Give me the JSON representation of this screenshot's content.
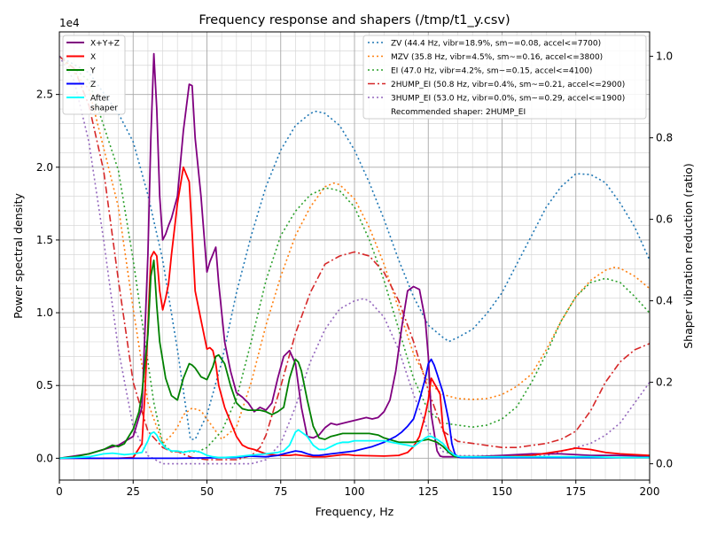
{
  "chart_data": {
    "type": "line",
    "title": "Frequency response and shapers (/tmp/t1_y.csv)",
    "xlabel": "Frequency, Hz",
    "ylabel_left": "Power spectral density",
    "ylabel_right": "Shaper vibration reduction (ratio)",
    "left_exponent_label": "1e4",
    "xlim": [
      0,
      200
    ],
    "ylim_left": [
      -1500,
      29300
    ],
    "ylim_right": [
      -0.04,
      1.06
    ],
    "grid": true,
    "x_ticks": [
      0,
      25,
      50,
      75,
      100,
      125,
      150,
      175,
      200
    ],
    "x_tick_labels": [
      "0",
      "25",
      "50",
      "75",
      "100",
      "125",
      "150",
      "175",
      "200"
    ],
    "y_left_ticks": [
      0,
      5000,
      10000,
      15000,
      20000,
      25000
    ],
    "y_left_tick_labels": [
      "0.0",
      "0.5",
      "1.0",
      "1.5",
      "2.0",
      "2.5"
    ],
    "y_right_ticks": [
      0,
      0.2,
      0.4,
      0.6,
      0.8,
      1.0
    ],
    "y_right_tick_labels": [
      "0.0",
      "0.2",
      "0.4",
      "0.6",
      "0.8",
      "1.0"
    ],
    "legend_left": {
      "placement": "top-left",
      "entries": [
        "X+Y+Z",
        "X",
        "Y",
        "Z",
        "After\nshaper"
      ]
    },
    "legend_right": {
      "placement": "top-right",
      "entries": [
        "ZV (44.4 Hz, vibr=18.9%, sm~=0.08, accel<=7700)",
        "MZV (35.8 Hz, vibr=4.5%, sm~=0.16, accel<=3800)",
        "EI (47.0 Hz, vibr=4.2%, sm~=0.15, accel<=4100)",
        "2HUMP_EI (50.8 Hz, vibr=0.4%, sm~=0.21, accel<=2900)",
        "3HUMP_EI (53.0 Hz, vibr=0.0%, sm~=0.29, accel<=1900)"
      ],
      "note": "Recommended shaper: 2HUMP_EI"
    },
    "psd_series": [
      {
        "name": "X+Y+Z",
        "color": "#800080",
        "style": "solid",
        "x": [
          0,
          10,
          20,
          25,
          28,
          30,
          31,
          32,
          33,
          34,
          35,
          36,
          37,
          38,
          40,
          42,
          44,
          45,
          46,
          48,
          50,
          51,
          53,
          54,
          56,
          58,
          60,
          62,
          64,
          66,
          68,
          70,
          72,
          74,
          76,
          78,
          80,
          81,
          82,
          84,
          86,
          88,
          90,
          92,
          94,
          96,
          98,
          100,
          102,
          104,
          106,
          108,
          110,
          112,
          114,
          116,
          118,
          120,
          122,
          124,
          125,
          126,
          128,
          129,
          130,
          131,
          132,
          133,
          135,
          140,
          150,
          160,
          170,
          180,
          190,
          200
        ],
        "y": [
          0,
          300,
          900,
          1500,
          3500,
          14000,
          22000,
          27800,
          24000,
          18000,
          15000,
          15400,
          16000,
          16500,
          18000,
          22500,
          25700,
          25600,
          22000,
          18000,
          12800,
          13500,
          14500,
          12000,
          8000,
          6000,
          4500,
          4200,
          3800,
          3200,
          3500,
          3300,
          3800,
          5500,
          7000,
          7400,
          6500,
          5000,
          3500,
          1500,
          1400,
          1600,
          2100,
          2400,
          2300,
          2400,
          2500,
          2600,
          2700,
          2800,
          2700,
          2800,
          3200,
          4000,
          6000,
          9000,
          11500,
          11800,
          11600,
          9500,
          7000,
          3000,
          500,
          150,
          100,
          100,
          100,
          100,
          100,
          100,
          200,
          300,
          300,
          200,
          200,
          150
        ]
      },
      {
        "name": "X",
        "color": "#ff0000",
        "style": "solid",
        "x": [
          0,
          20,
          25,
          28,
          29,
          30,
          31,
          32,
          33,
          34,
          35,
          36,
          37,
          38,
          40,
          42,
          44,
          45,
          46,
          48,
          50,
          51,
          52,
          53,
          54,
          56,
          58,
          60,
          62,
          64,
          66,
          68,
          70,
          72,
          74,
          76,
          78,
          80,
          82,
          84,
          86,
          88,
          90,
          92,
          94,
          96,
          98,
          100,
          110,
          115,
          118,
          120,
          122,
          124,
          125,
          126,
          128,
          129,
          130,
          132,
          134,
          136,
          140,
          150,
          160,
          170,
          175,
          180,
          185,
          190,
          200
        ],
        "y": [
          0,
          0,
          50,
          1000,
          4500,
          9000,
          13800,
          14200,
          13900,
          11500,
          10200,
          11000,
          12000,
          14000,
          17500,
          20000,
          19000,
          15500,
          11500,
          9500,
          7500,
          7600,
          7400,
          6500,
          5000,
          3500,
          2500,
          1500,
          900,
          700,
          600,
          450,
          300,
          250,
          200,
          200,
          200,
          250,
          200,
          150,
          100,
          100,
          100,
          150,
          200,
          250,
          250,
          200,
          150,
          200,
          400,
          800,
          1500,
          3000,
          4000,
          5500,
          4800,
          4400,
          2000,
          600,
          150,
          100,
          100,
          100,
          200,
          500,
          700,
          600,
          400,
          300,
          200
        ]
      },
      {
        "name": "Y",
        "color": "#008000",
        "style": "solid",
        "x": [
          0,
          5,
          10,
          15,
          18,
          20,
          22,
          25,
          27,
          28,
          30,
          31,
          32,
          33,
          34,
          36,
          38,
          40,
          42,
          44,
          45,
          46,
          48,
          50,
          52,
          53,
          54,
          56,
          58,
          60,
          62,
          64,
          66,
          68,
          70,
          72,
          74,
          76,
          78,
          80,
          81,
          82,
          84,
          86,
          88,
          90,
          92,
          94,
          96,
          98,
          100,
          105,
          108,
          110,
          115,
          120,
          125,
          128,
          130,
          132,
          134,
          140,
          150,
          160,
          170,
          180,
          190,
          200
        ],
        "y": [
          0,
          100,
          300,
          600,
          900,
          800,
          1000,
          2000,
          3200,
          4500,
          8500,
          12500,
          13600,
          10500,
          8000,
          5500,
          4300,
          4000,
          5500,
          6500,
          6400,
          6200,
          5600,
          5400,
          6300,
          7000,
          7100,
          6500,
          5000,
          3800,
          3400,
          3300,
          3300,
          3300,
          3200,
          3000,
          3200,
          3500,
          5500,
          6800,
          6600,
          6000,
          4000,
          2200,
          1400,
          1300,
          1500,
          1600,
          1700,
          1700,
          1700,
          1700,
          1600,
          1400,
          1100,
          1100,
          1300,
          1100,
          800,
          400,
          100,
          50,
          50,
          50,
          50,
          50,
          50,
          50
        ]
      },
      {
        "name": "Z",
        "color": "#0000ff",
        "style": "solid",
        "x": [
          0,
          20,
          40,
          60,
          62,
          64,
          70,
          74,
          76,
          78,
          80,
          82,
          84,
          86,
          88,
          90,
          92,
          94,
          96,
          98,
          100,
          102,
          104,
          106,
          108,
          110,
          112,
          114,
          116,
          118,
          120,
          122,
          124,
          125,
          126,
          127,
          128,
          130,
          132,
          133,
          134,
          135,
          136,
          140,
          150,
          160,
          170,
          180,
          190,
          200
        ],
        "y": [
          0,
          0,
          0,
          50,
          100,
          150,
          100,
          200,
          300,
          400,
          500,
          450,
          300,
          200,
          200,
          250,
          300,
          350,
          400,
          450,
          500,
          600,
          700,
          800,
          950,
          1100,
          1300,
          1500,
          1800,
          2200,
          2700,
          4000,
          5500,
          6500,
          6800,
          6400,
          5800,
          4500,
          2500,
          1000,
          300,
          100,
          50,
          50,
          50,
          50,
          50,
          50,
          50,
          50
        ]
      },
      {
        "name": "After\nshaper",
        "color": "#00ffff",
        "style": "solid",
        "x": [
          0,
          10,
          15,
          18,
          20,
          22,
          25,
          28,
          30,
          31,
          32,
          33,
          34,
          36,
          38,
          40,
          42,
          44,
          46,
          48,
          50,
          52,
          54,
          56,
          58,
          60,
          64,
          70,
          74,
          76,
          78,
          80,
          81,
          82,
          84,
          86,
          88,
          90,
          92,
          94,
          96,
          98,
          100,
          104,
          108,
          110,
          115,
          118,
          120,
          122,
          124,
          125,
          126,
          128,
          130,
          132,
          134,
          136,
          140,
          150,
          160,
          170,
          180,
          190,
          200
        ],
        "y": [
          0,
          100,
          300,
          350,
          300,
          250,
          300,
          400,
          1200,
          1700,
          1800,
          1600,
          1200,
          700,
          500,
          500,
          400,
          500,
          500,
          400,
          200,
          100,
          50,
          50,
          80,
          100,
          200,
          300,
          400,
          500,
          900,
          1800,
          1950,
          1800,
          1500,
          900,
          600,
          600,
          800,
          1000,
          1100,
          1100,
          1200,
          1200,
          1200,
          1200,
          1000,
          900,
          800,
          1100,
          1400,
          1500,
          1500,
          1300,
          1000,
          500,
          200,
          100,
          100,
          100,
          100,
          100,
          100,
          50,
          50
        ]
      }
    ],
    "shaper_series": [
      {
        "name": "ZV (44.4 Hz, vibr=18.9%, sm~=0.08, accel<=7700)",
        "color": "#1f77b4",
        "style": "dotted",
        "x": [
          0,
          10,
          20,
          25,
          30,
          35,
          40,
          44.4,
          46,
          48,
          50,
          55,
          60,
          65,
          70,
          75,
          80,
          85,
          87,
          90,
          95,
          100,
          105,
          110,
          115,
          120,
          125,
          130,
          132,
          135,
          140,
          145,
          150,
          155,
          160,
          165,
          170,
          175,
          180,
          185,
          190,
          195,
          200
        ],
        "y": [
          1.0,
          0.96,
          0.86,
          0.79,
          0.66,
          0.5,
          0.28,
          0.06,
          0.06,
          0.09,
          0.12,
          0.25,
          0.42,
          0.56,
          0.68,
          0.77,
          0.83,
          0.86,
          0.865,
          0.86,
          0.83,
          0.77,
          0.69,
          0.6,
          0.5,
          0.41,
          0.34,
          0.31,
          0.3,
          0.31,
          0.33,
          0.37,
          0.42,
          0.49,
          0.56,
          0.63,
          0.68,
          0.712,
          0.71,
          0.69,
          0.64,
          0.58,
          0.5
        ]
      },
      {
        "name": "MZV (35.8 Hz, vibr=4.5%, sm~=0.16, accel<=3800)",
        "color": "#ff7f0e",
        "style": "dotted",
        "x": [
          0,
          10,
          20,
          25,
          30,
          35,
          38,
          40,
          42,
          45,
          48,
          50,
          52,
          55,
          60,
          65,
          70,
          75,
          80,
          85,
          90,
          93,
          95,
          100,
          105,
          110,
          115,
          120,
          125,
          130,
          135,
          140,
          145,
          150,
          155,
          160,
          165,
          170,
          175,
          180,
          185,
          188,
          190,
          195,
          200
        ],
        "y": [
          1.0,
          0.92,
          0.63,
          0.38,
          0.15,
          0.05,
          0.07,
          0.09,
          0.12,
          0.137,
          0.13,
          0.11,
          0.09,
          0.06,
          0.09,
          0.2,
          0.34,
          0.46,
          0.56,
          0.63,
          0.68,
          0.689,
          0.685,
          0.65,
          0.58,
          0.49,
          0.38,
          0.27,
          0.2,
          0.17,
          0.16,
          0.158,
          0.16,
          0.17,
          0.19,
          0.22,
          0.28,
          0.35,
          0.41,
          0.45,
          0.475,
          0.482,
          0.48,
          0.46,
          0.43
        ]
      },
      {
        "name": "EI (47.0 Hz, vibr=4.2%, sm~=0.15, accel<=4100)",
        "color": "#2ca02c",
        "style": "dotted",
        "x": [
          0,
          10,
          20,
          25,
          30,
          32,
          35,
          38,
          40,
          45,
          47,
          50,
          55,
          60,
          65,
          70,
          75,
          80,
          85,
          90,
          92,
          95,
          100,
          105,
          110,
          115,
          120,
          125,
          130,
          135,
          140,
          145,
          150,
          155,
          160,
          165,
          170,
          175,
          180,
          185,
          190,
          195,
          200
        ],
        "y": [
          1.0,
          0.94,
          0.72,
          0.5,
          0.25,
          0.15,
          0.05,
          0.03,
          0.03,
          0.03,
          0.03,
          0.04,
          0.08,
          0.16,
          0.3,
          0.45,
          0.56,
          0.62,
          0.66,
          0.677,
          0.675,
          0.67,
          0.63,
          0.55,
          0.45,
          0.33,
          0.21,
          0.13,
          0.1,
          0.095,
          0.09,
          0.095,
          0.11,
          0.14,
          0.2,
          0.27,
          0.35,
          0.41,
          0.445,
          0.455,
          0.445,
          0.41,
          0.37
        ]
      },
      {
        "name": "2HUMP_EI (50.8 Hz, vibr=0.4%, sm~=0.21, accel<=2900)",
        "color": "#d62728",
        "style": "dashdot",
        "x": [
          0,
          5,
          10,
          15,
          20,
          25,
          30,
          35,
          38,
          40,
          45,
          50,
          55,
          60,
          65,
          68,
          70,
          75,
          80,
          85,
          90,
          95,
          100,
          105,
          110,
          115,
          120,
          125,
          130,
          135,
          140,
          145,
          150,
          155,
          160,
          165,
          170,
          175,
          180,
          185,
          190,
          195,
          200
        ],
        "y": [
          1.0,
          0.97,
          0.88,
          0.72,
          0.45,
          0.2,
          0.08,
          0.04,
          0.03,
          0.03,
          0.015,
          0.01,
          0.01,
          0.01,
          0.02,
          0.04,
          0.07,
          0.19,
          0.32,
          0.42,
          0.49,
          0.51,
          0.52,
          0.51,
          0.47,
          0.4,
          0.3,
          0.18,
          0.08,
          0.055,
          0.05,
          0.045,
          0.04,
          0.04,
          0.045,
          0.05,
          0.06,
          0.08,
          0.13,
          0.2,
          0.25,
          0.28,
          0.295
        ]
      },
      {
        "name": "3HUMP_EI (53.0 Hz, vibr=0.0%, sm~=0.29, accel<=1900)",
        "color": "#9467bd",
        "style": "dotted",
        "x": [
          0,
          5,
          10,
          15,
          20,
          25,
          30,
          35,
          40,
          45,
          50,
          55,
          60,
          65,
          70,
          75,
          80,
          85,
          90,
          95,
          100,
          103,
          105,
          110,
          115,
          120,
          125,
          130,
          135,
          140,
          145,
          150,
          155,
          160,
          165,
          170,
          175,
          180,
          185,
          190,
          195,
          200
        ],
        "y": [
          1.0,
          0.94,
          0.79,
          0.55,
          0.28,
          0.09,
          0.02,
          0.0,
          0.0,
          0.0,
          0.0,
          0.0,
          0.0,
          0.0,
          0.01,
          0.05,
          0.14,
          0.25,
          0.33,
          0.38,
          0.4,
          0.405,
          0.4,
          0.36,
          0.28,
          0.17,
          0.08,
          0.03,
          0.02,
          0.02,
          0.02,
          0.02,
          0.02,
          0.02,
          0.02,
          0.03,
          0.04,
          0.05,
          0.07,
          0.1,
          0.15,
          0.2
        ]
      }
    ]
  }
}
